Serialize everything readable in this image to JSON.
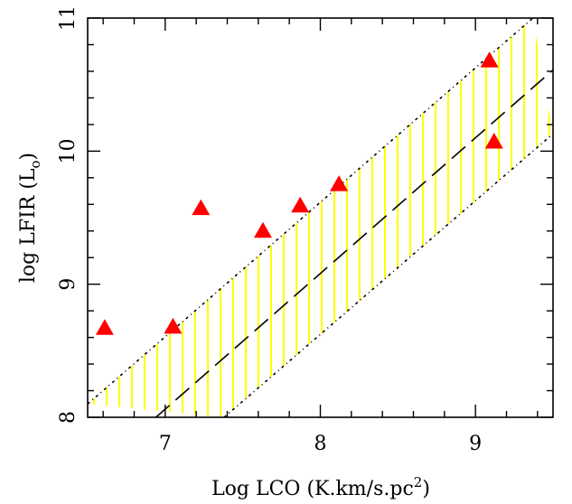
{
  "chart_data": {
    "type": "scatter",
    "xlabel": [
      "Log LCO (K.km/s.pc",
      "2",
      ")"
    ],
    "ylabel": [
      "log LFIR (L",
      "o",
      ")"
    ],
    "x": [
      6.61,
      7.05,
      7.23,
      7.63,
      7.87,
      8.12,
      9.09,
      9.12
    ],
    "y": [
      8.67,
      8.68,
      9.57,
      9.4,
      9.59,
      9.75,
      10.68,
      10.07
    ],
    "color": "#ff0000",
    "fit": {
      "x": [
        6.94,
        9.5
      ],
      "y": [
        8,
        10.61
      ],
      "color": "#000000"
    },
    "band_upper": {
      "x": [
        6.5,
        9.37
      ],
      "y": [
        8.1,
        11
      ]
    },
    "band_lower": {
      "x": [
        7.38,
        9.5
      ],
      "y": [
        8,
        10.13
      ]
    },
    "band_color": "#ffff00",
    "xlim": [
      6.5,
      9.5
    ],
    "ylim": [
      8,
      11
    ],
    "xticks": [
      7,
      8,
      9
    ],
    "yticks": [
      8,
      9,
      10,
      11
    ],
    "xticks_minor": [
      6.6,
      6.8,
      7.2,
      7.4,
      7.6,
      7.8,
      8.2,
      8.4,
      8.6,
      8.8,
      9.2,
      9.4
    ],
    "yticks_minor": [
      8.2,
      8.4,
      8.6,
      8.8,
      9.2,
      9.4,
      9.6,
      9.8,
      10.2,
      10.4,
      10.6,
      10.8
    ]
  }
}
